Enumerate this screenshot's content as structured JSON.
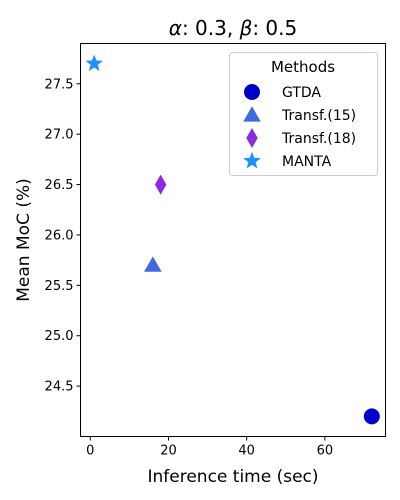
{
  "chart_data": {
    "type": "scatter",
    "title_parts": [
      "α",
      ": 0.3, ",
      "β",
      ": 0.5"
    ],
    "xlabel": "Inference time (sec)",
    "ylabel": "Mean MoC (%)",
    "xlim": [
      -2.5,
      75.5
    ],
    "ylim": [
      24.0,
      27.9
    ],
    "xticks": [
      0,
      20,
      40,
      60
    ],
    "yticks": [
      24.5,
      25.0,
      25.5,
      26.0,
      26.5,
      27.0,
      27.5
    ],
    "xtick_labels": [
      "0",
      "20",
      "40",
      "60"
    ],
    "ytick_labels": [
      "24.5",
      "25.0",
      "25.5",
      "26.0",
      "26.5",
      "27.0",
      "27.5"
    ],
    "grid": false,
    "legend": {
      "title": "Methods",
      "placement": "top-right"
    },
    "series": [
      {
        "name": "GTDA",
        "marker": "circle",
        "color": "#0000cd",
        "x": [
          72
        ],
        "y": [
          24.2
        ]
      },
      {
        "name": "Transf.(15)",
        "marker": "triangle",
        "color": "#4169e1",
        "x": [
          16
        ],
        "y": [
          25.7
        ]
      },
      {
        "name": "Transf.(18)",
        "marker": "diamond",
        "color": "#8a2be2",
        "x": [
          18
        ],
        "y": [
          26.5
        ]
      },
      {
        "name": "MANTA",
        "marker": "star",
        "color": "#1e90ff",
        "x": [
          1
        ],
        "y": [
          27.7
        ]
      }
    ]
  }
}
